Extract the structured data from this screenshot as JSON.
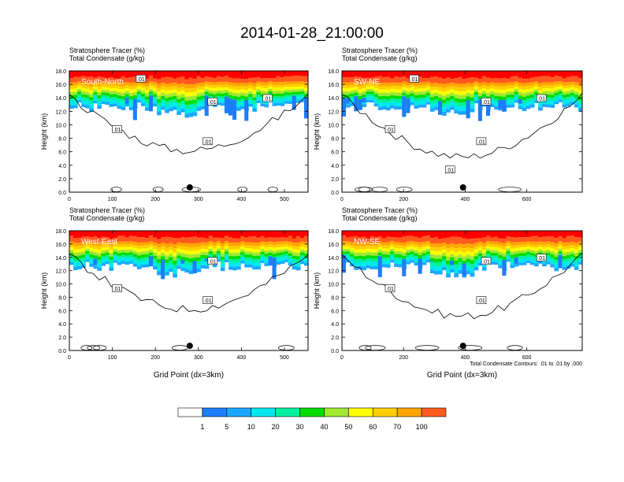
{
  "title": "2014-01-28_21:00:00",
  "colors": {
    "levels": [
      "#ffffff",
      "#1e7dfa",
      "#1aa8ff",
      "#00e8f0",
      "#00f0a0",
      "#00dd00",
      "#a0e832",
      "#ffff00",
      "#ffcf00",
      "#ffa500",
      "#ff5a1e",
      "#ff0000"
    ],
    "contour": "#000000"
  },
  "colorbar": {
    "labels": [
      "1",
      "5",
      "10",
      "20",
      "30",
      "40",
      "50",
      "60",
      "70",
      "100"
    ]
  },
  "contour_note": "Total Condensate Contours: .01 to .01 by .000",
  "chart_data": [
    {
      "type": "heatmap",
      "name_label": "South-North",
      "label_line1": "Stratosphere Tracer   (%)",
      "label_line2": "Total Condensate   (g/kg)",
      "ylabel": "Height (km)",
      "xlabel": "",
      "xlim": [
        0,
        555
      ],
      "ylim": [
        0,
        18
      ],
      "xticks": [
        "0",
        "100",
        "200",
        "300",
        "400",
        "500"
      ],
      "yticks": [
        "0.0",
        "2.0",
        "4.0",
        "6.0",
        "8.0",
        "10.0",
        "12.0",
        "14.0",
        "16.0",
        "18.0"
      ],
      "marker_x": 280,
      "contour_labels": [
        ".01",
        ".01",
        ".01",
        ".01",
        ".01"
      ]
    },
    {
      "type": "heatmap",
      "name_label": "SW-NE",
      "label_line1": "Stratosphere Tracer   (%)",
      "label_line2": "Total Condensate   (g/kg)",
      "ylabel": "Height (km)",
      "xlabel": "",
      "xlim": [
        0,
        780
      ],
      "ylim": [
        0,
        18
      ],
      "xticks": [
        "0",
        "200",
        "400",
        "600"
      ],
      "yticks": [
        "0.0",
        "2.0",
        "4.0",
        "6.0",
        "8.0",
        "10.0",
        "12.0",
        "14.0",
        "16.0",
        "18.0"
      ],
      "marker_x": 393,
      "contour_labels": [
        ".01",
        ".01",
        ".01",
        ".01",
        ".01",
        ".01"
      ]
    },
    {
      "type": "heatmap",
      "name_label": "West-East",
      "label_line1": "Stratosphere Tracer   (%)",
      "label_line2": "Total Condensate   (g/kg)",
      "ylabel": "Height (km)",
      "xlabel": "Grid Point (dx=3km)",
      "xlim": [
        0,
        555
      ],
      "ylim": [
        0,
        18
      ],
      "xticks": [
        "0",
        "100",
        "200",
        "300",
        "400",
        "500"
      ],
      "yticks": [
        "0.0",
        "2.0",
        "4.0",
        "6.0",
        "8.0",
        "10.0",
        "12.0",
        "14.0",
        "16.0",
        "18.0"
      ],
      "marker_x": 280,
      "contour_labels": [
        ".01",
        ".01",
        ".01"
      ]
    },
    {
      "type": "heatmap",
      "name_label": "NW-SE",
      "label_line1": "Stratosphere Tracer   (%)",
      "label_line2": "Total Condensate   (g/kg)",
      "ylabel": "Height (km)",
      "xlabel": "Grid Point (dx=3km)",
      "xlim": [
        0,
        780
      ],
      "ylim": [
        0,
        18
      ],
      "xticks": [
        "0",
        "200",
        "400",
        "600"
      ],
      "yticks": [
        "0.0",
        "2.0",
        "4.0",
        "6.0",
        "8.0",
        "10.0",
        "12.0",
        "14.0",
        "16.0",
        "18.0"
      ],
      "marker_x": 393,
      "contour_labels": [
        ".01",
        ".01",
        ".01",
        ".01"
      ]
    }
  ]
}
